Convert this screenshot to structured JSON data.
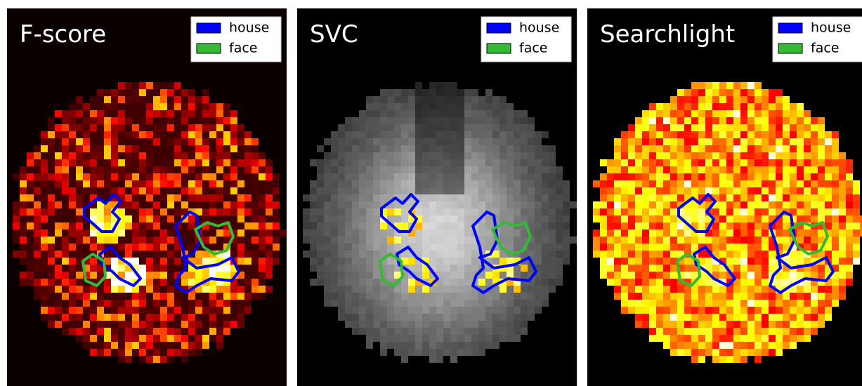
{
  "panels": [
    {
      "title": "F-score",
      "legend": [
        {
          "label": "house",
          "color": "#0000ff"
        },
        {
          "label": "face",
          "color": "#33bb33"
        }
      ]
    },
    {
      "title": "SVC",
      "legend": [
        {
          "label": "house",
          "color": "#0000ff"
        },
        {
          "label": "face",
          "color": "#33bb33"
        }
      ]
    },
    {
      "title": "Searchlight",
      "legend": [
        {
          "label": "house",
          "color": "#0000ff"
        },
        {
          "label": "face",
          "color": "#33bb33"
        }
      ]
    }
  ]
}
